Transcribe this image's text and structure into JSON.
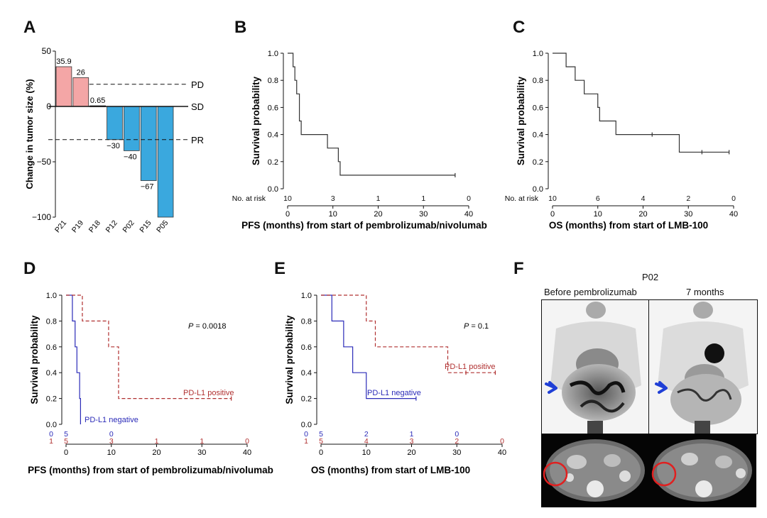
{
  "panels": {
    "A": {
      "letter": "A",
      "chart_data": {
        "type": "bar",
        "ylabel": "Change in tumor size (%)",
        "ylim": [
          -100,
          50
        ],
        "yticks": [
          50,
          0,
          -50,
          -100
        ],
        "categories": [
          "P21",
          "P19",
          "P18",
          "P12",
          "P02",
          "P15",
          "P05"
        ],
        "values": [
          35.9,
          26,
          0.65,
          -30,
          -40,
          -67,
          -100
        ],
        "value_labels": [
          "35.9",
          "26",
          "0.65",
          "−30",
          "−40",
          "−67",
          ""
        ],
        "reference_lines": [
          {
            "label": "PD",
            "y": 20,
            "style": "dashed"
          },
          {
            "label": "SD",
            "y": 0,
            "style": "solid"
          },
          {
            "label": "PR",
            "y": -30,
            "style": "dashed"
          }
        ],
        "colors": {
          "positive": "#f4a6a6",
          "negative": "#3aa8de"
        }
      }
    },
    "B": {
      "letter": "B",
      "chart_data": {
        "type": "line",
        "xlabel": "PFS (months) from start of pembrolizumab/nivolumab",
        "ylabel": "Survival probability",
        "xlim": [
          0,
          40
        ],
        "ylim": [
          0,
          1
        ],
        "xticks": [
          0,
          10,
          20,
          30,
          40
        ],
        "yticks": [
          "0.0",
          "0.2",
          "0.4",
          "0.6",
          "0.8",
          "1.0"
        ],
        "step": true,
        "series": [
          {
            "color": "#333333",
            "dashed": false,
            "x": [
              0,
              1.2,
              1.6,
              2.0,
              2.6,
              3.0,
              8.8,
              11.2,
              11.6,
              37
            ],
            "y": [
              1.0,
              0.9,
              0.8,
              0.7,
              0.5,
              0.4,
              0.3,
              0.2,
              0.1,
              0.1
            ],
            "censor_x": [
              37
            ]
          }
        ],
        "risk_label": "No. at risk",
        "risk_x": [
          0,
          10,
          20,
          30,
          40
        ],
        "risk_rows": [
          {
            "color": "#111111",
            "values": [
              "10",
              "3",
              "1",
              "1",
              "0"
            ]
          }
        ]
      }
    },
    "C": {
      "letter": "C",
      "chart_data": {
        "type": "line",
        "xlabel": "OS (months) from start of LMB-100",
        "ylabel": "Survival probability",
        "xlim": [
          0,
          40
        ],
        "ylim": [
          0,
          1
        ],
        "xticks": [
          0,
          10,
          20,
          30,
          40
        ],
        "yticks": [
          "0.0",
          "0.2",
          "0.4",
          "0.6",
          "0.8",
          "1.0"
        ],
        "step": true,
        "series": [
          {
            "color": "#333333",
            "dashed": false,
            "x": [
              0,
              3,
              5,
              7,
              10,
              10.4,
              14,
              28,
              39
            ],
            "y": [
              1.0,
              0.9,
              0.8,
              0.7,
              0.6,
              0.5,
              0.4,
              0.27,
              0.27
            ],
            "censor_x": [
              22,
              33,
              39
            ]
          }
        ],
        "risk_label": "No. at risk",
        "risk_x": [
          0,
          10,
          20,
          30,
          40
        ],
        "risk_rows": [
          {
            "color": "#111111",
            "values": [
              "10",
              "6",
              "4",
              "2",
              "0"
            ]
          }
        ]
      }
    },
    "D": {
      "letter": "D",
      "chart_data": {
        "type": "line",
        "xlabel": "PFS (months) from start of pembrolizumab/nivolumab",
        "ylabel": "Survival probability",
        "xlim": [
          0,
          40
        ],
        "ylim": [
          0,
          1
        ],
        "xticks": [
          0,
          10,
          20,
          30,
          40
        ],
        "yticks": [
          "0.0",
          "0.2",
          "0.4",
          "0.6",
          "0.8",
          "1.0"
        ],
        "step": true,
        "pvalue_italic": "P",
        "pvalue_text": " = 0.0018",
        "series": [
          {
            "name": "PD-L1 negative",
            "color": "#2b2bb8",
            "dashed": false,
            "x": [
              0,
              1.4,
              2.0,
              2.4,
              3.0,
              3.2
            ],
            "y": [
              1.0,
              0.8,
              0.6,
              0.4,
              0.2,
              0.0
            ],
            "censor_x": []
          },
          {
            "name": "PD-L1 positive",
            "color": "#b03030",
            "dashed": true,
            "x": [
              0,
              3.6,
              9.4,
              11.6,
              36.5
            ],
            "y": [
              1.0,
              0.8,
              0.6,
              0.2,
              0.2
            ],
            "censor_x": [
              36.5
            ]
          }
        ],
        "risk_x": [
          0,
          10,
          20,
          30,
          40
        ],
        "risk_rows": [
          {
            "color": "#2b2bb8",
            "prefix": "0",
            "values": [
              "5",
              "0",
              "",
              "",
              ""
            ]
          },
          {
            "color": "#b03030",
            "prefix": "1",
            "values": [
              "5",
              "3",
              "1",
              "1",
              "0"
            ]
          }
        ]
      }
    },
    "E": {
      "letter": "E",
      "chart_data": {
        "type": "line",
        "xlabel": "OS (months) from start of LMB-100",
        "ylabel": "Survival probability",
        "xlim": [
          0,
          40
        ],
        "ylim": [
          0,
          1
        ],
        "xticks": [
          0,
          10,
          20,
          30,
          40
        ],
        "yticks": [
          "0.0",
          "0.2",
          "0.4",
          "0.6",
          "0.8",
          "1.0"
        ],
        "step": true,
        "pvalue_italic": "P",
        "pvalue_text": " = 0.1",
        "series": [
          {
            "name": "PD-L1 negative",
            "color": "#2b2bb8",
            "dashed": false,
            "x": [
              0,
              2.4,
              5,
              7,
              10,
              21
            ],
            "y": [
              1.0,
              0.8,
              0.6,
              0.4,
              0.2,
              0.2
            ],
            "censor_x": [
              21
            ]
          },
          {
            "name": "PD-L1 positive",
            "color": "#b03030",
            "dashed": true,
            "x": [
              0,
              10,
              12,
              14,
              28,
              38.5
            ],
            "y": [
              1.0,
              0.8,
              0.6,
              0.6,
              0.4,
              0.4
            ],
            "censor_x": [
              32,
              38.5
            ]
          }
        ],
        "risk_x": [
          0,
          10,
          20,
          30,
          40
        ],
        "risk_rows": [
          {
            "color": "#2b2bb8",
            "prefix": "0",
            "values": [
              "5",
              "2",
              "1",
              "0",
              ""
            ]
          },
          {
            "color": "#b03030",
            "prefix": "1",
            "values": [
              "5",
              "4",
              "3",
              "2",
              "0"
            ]
          }
        ]
      }
    },
    "F": {
      "letter": "F",
      "patient": "P02",
      "left_label": "Before pembrolizumab",
      "right_label": "7 months",
      "arrow_color": "#1f3fd6",
      "circle_color": "#e02020"
    }
  }
}
